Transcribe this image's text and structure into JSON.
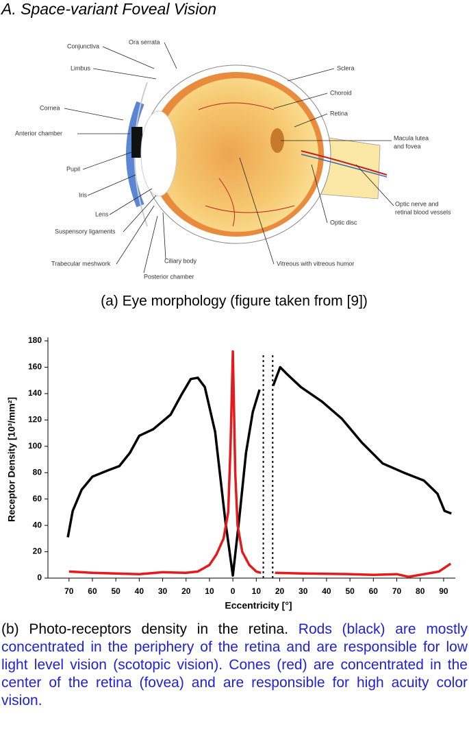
{
  "heading": "A. Space-variant Foveal Vision",
  "diagram": {
    "labels": [
      "Conjunctiva",
      "Ora serrata",
      "Limbus",
      "Sclera",
      "Cornea",
      "Choroid",
      "Retina",
      "Anterior chamber",
      "Macula lutea",
      "and fovea",
      "Pupil",
      "Iris",
      "Optic nerve and",
      "retinal blood vessels",
      "Lens",
      "Optic disc",
      "Suspensory ligaments",
      "Trabecular meshwork",
      "Ciliary body",
      "Vitreous with vitreous humor",
      "Posterior chamber"
    ],
    "caption": "(a) Eye morphology (figure taken from [9])"
  },
  "chart_data": {
    "type": "line",
    "xlabel": "Eccentricity [°]",
    "ylabel": "Receptor Density [10³/mm²]",
    "xlim": [
      -79,
      95
    ],
    "ylim": [
      0,
      180
    ],
    "xticks": [
      {
        "value": -70,
        "label": "70"
      },
      {
        "value": -60,
        "label": "60"
      },
      {
        "value": -50,
        "label": "50"
      },
      {
        "value": -40,
        "label": "40"
      },
      {
        "value": -30,
        "label": "30"
      },
      {
        "value": -20,
        "label": "20"
      },
      {
        "value": -10,
        "label": "10"
      },
      0,
      10,
      20,
      30,
      40,
      50,
      60,
      70,
      80,
      90
    ],
    "yticks": [
      0,
      20,
      40,
      60,
      80,
      100,
      120,
      140,
      160,
      180
    ],
    "vlines": [
      13,
      17
    ],
    "series": [
      {
        "name": "Rods",
        "color": "#000000",
        "x": [
          -70.5,
          -68.4,
          -64.6,
          -60,
          -53,
          -48.5,
          -44,
          -40,
          -34,
          -26.6,
          -22,
          -18,
          -15,
          -12,
          -7.6,
          -3.2,
          0,
          2.6,
          5.6,
          8.5,
          11.4,
          14,
          17.2,
          20.2,
          23,
          29,
          38,
          46.5,
          55,
          64,
          73,
          81.6,
          87.4,
          90.4,
          93.3
        ],
        "values": [
          31,
          51,
          67,
          77,
          82,
          85,
          95,
          108,
          113,
          124,
          139,
          151,
          152,
          145,
          111,
          43,
          2,
          43,
          95,
          126,
          143,
          null,
          146,
          160,
          155,
          145,
          134,
          121,
          103,
          87,
          80,
          74,
          64,
          51,
          49
        ]
      },
      {
        "name": "Cones",
        "color": "#e41a1c",
        "x": [
          -70,
          -60,
          -50,
          -40,
          -30,
          -20,
          -15,
          -10,
          -7,
          -4,
          -2,
          -1,
          0,
          1,
          2,
          4,
          7,
          10,
          12,
          14,
          18,
          30,
          50,
          60,
          70,
          75,
          80,
          88,
          93
        ],
        "values": [
          5,
          4,
          3.5,
          3,
          4.5,
          4,
          5,
          10,
          18,
          30,
          50,
          100,
          172,
          80,
          40,
          20,
          10,
          5,
          4,
          null,
          4,
          3.5,
          3,
          2.5,
          3,
          1,
          2.5,
          5,
          11
        ]
      }
    ]
  },
  "caption_b": {
    "lead": "(b) Photo-receptors density in the retina.",
    "note": "Rods (black) are mostly concentrated in the periphery of the retina and are responsible for low light level vision (scotopic vision). Cones (red) are concentrated in the center of the retina (fovea) and are responsible for high acuity color vision."
  }
}
